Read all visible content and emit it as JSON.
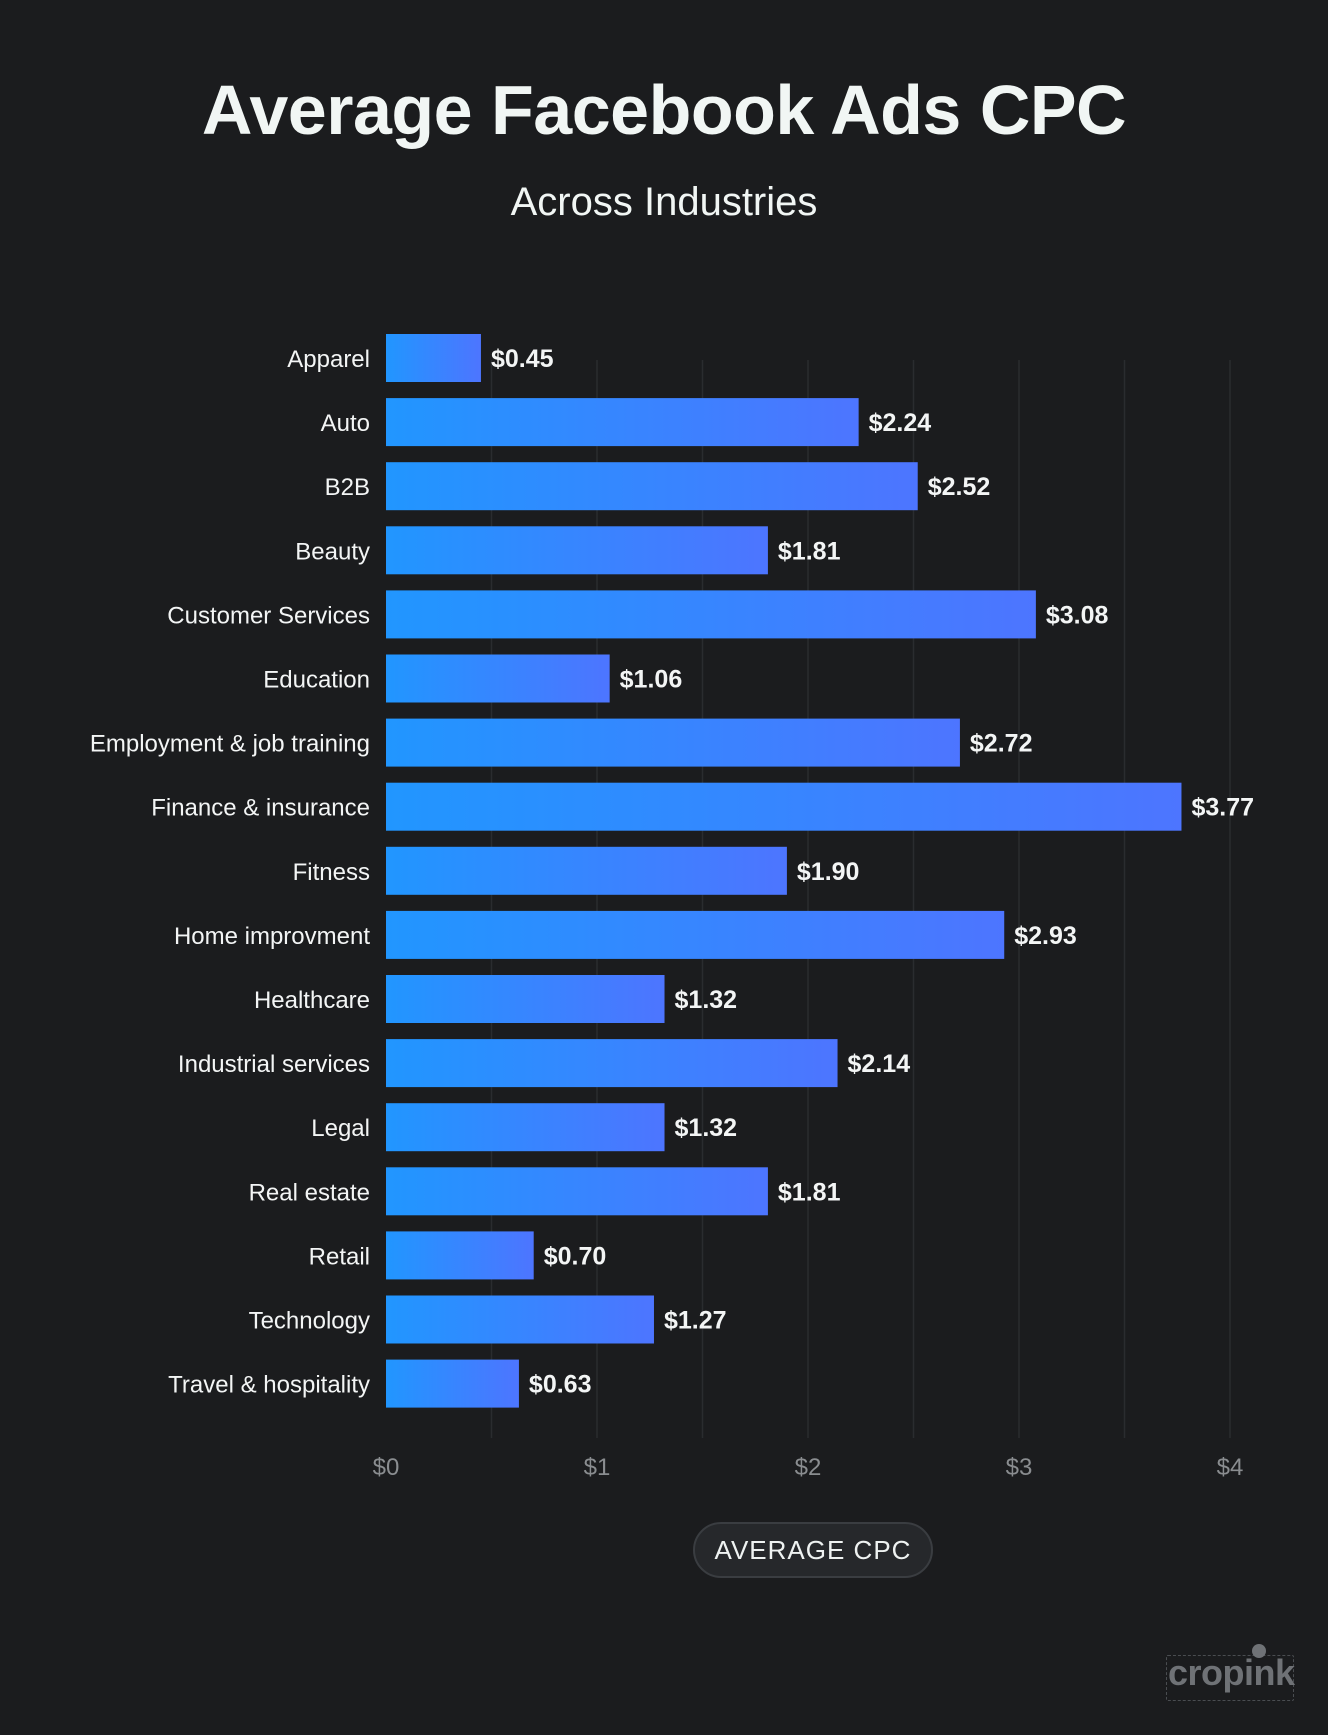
{
  "header": {
    "title": "Average Facebook Ads CPC",
    "subtitle": "Across Industries"
  },
  "colors": {
    "background": "#1b1c1e",
    "bar_start": "#2196ff",
    "bar_end": "#4d75ff",
    "grid": "#2a2c2f",
    "text": "#f3f5f5",
    "tick_text": "#8a8d90"
  },
  "chart_data": {
    "type": "bar",
    "orientation": "horizontal",
    "title": "Average Facebook Ads CPC",
    "subtitle": "Across Industries",
    "xlabel": "AVERAGE CPC",
    "ylabel": "",
    "xlim": [
      0,
      4
    ],
    "grid": true,
    "legend": "bottom-center",
    "categories": [
      "Apparel",
      "Auto",
      "B2B",
      "Beauty",
      "Customer Services",
      "Education",
      "Employment & job training",
      "Finance & insurance",
      "Fitness",
      "Home improvment",
      "Healthcare",
      "Industrial services",
      "Legal",
      "Real estate",
      "Retail",
      "Technology",
      "Travel & hospitality"
    ],
    "values": [
      0.45,
      2.24,
      2.52,
      1.81,
      3.08,
      1.06,
      2.72,
      3.77,
      1.9,
      2.93,
      1.32,
      2.14,
      1.32,
      1.81,
      0.7,
      1.27,
      0.63
    ],
    "value_labels": [
      "$0.45",
      "$2.24",
      "$2.52",
      "$1.81",
      "$3.08",
      "$1.06",
      "$2.72",
      "$3.77",
      "$1.90",
      "$2.93",
      "$1.32",
      "$2.14",
      "$1.32",
      "$1.81",
      "$0.70",
      "$1.27",
      "$0.63"
    ],
    "ticks": [
      0,
      1,
      2,
      3,
      4
    ],
    "tick_labels": [
      "$0",
      "$1",
      "$2",
      "$3",
      "$4"
    ]
  },
  "legend": {
    "label": "AVERAGE CPC"
  },
  "brand": {
    "name": "cropink"
  }
}
